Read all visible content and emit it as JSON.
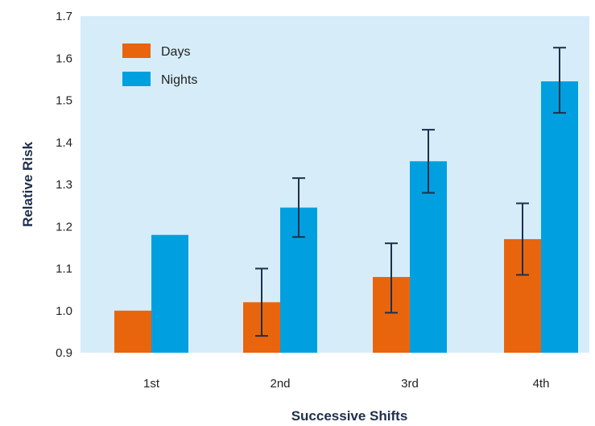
{
  "chart_data": {
    "type": "bar",
    "xlabel": "Successive Shifts",
    "ylabel": "Relative Risk",
    "categories": [
      "1st",
      "2nd",
      "3rd",
      "4th"
    ],
    "ylim": [
      0.9,
      1.7
    ],
    "yticks": [
      "0.9",
      "1.0",
      "1.1",
      "1.2",
      "1.3",
      "1.4",
      "1.5",
      "1.6",
      "1.7"
    ],
    "series": [
      {
        "name": "Days",
        "color": "#e8650e",
        "values": [
          1.0,
          1.02,
          1.08,
          1.17
        ],
        "error_low": [
          null,
          0.94,
          0.995,
          1.085
        ],
        "error_high": [
          null,
          1.1,
          1.16,
          1.255
        ]
      },
      {
        "name": "Nights",
        "color": "#00a0e0",
        "values": [
          1.18,
          1.245,
          1.355,
          1.545
        ],
        "error_low": [
          null,
          1.175,
          1.28,
          1.47
        ],
        "error_high": [
          null,
          1.315,
          1.43,
          1.625
        ]
      }
    ],
    "legend_position": "top-left",
    "plot_background": "#d6edf9",
    "error_bar_color": "#1f2f4d"
  }
}
